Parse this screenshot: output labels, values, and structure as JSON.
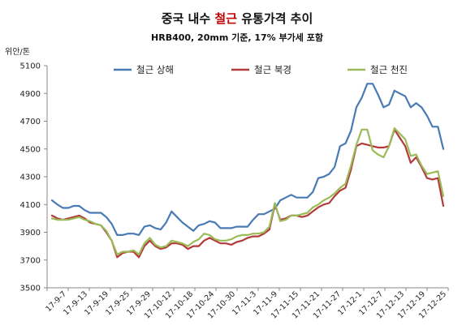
{
  "chart_data": {
    "type": "line",
    "title": {
      "prefix": "중국 내수 ",
      "highlight": "철근",
      "suffix": " 유통가격 추이"
    },
    "subtitle": "HRB400, 20mm 기준, 17% 부가세 포함",
    "ylabel": "위안/톤",
    "xlabel": "",
    "ylim": [
      3500,
      5100
    ],
    "yticks": [
      3500,
      3700,
      3900,
      4100,
      4300,
      4500,
      4700,
      4900,
      5100
    ],
    "grid": false,
    "legend_position": "top",
    "x_tick_labels": [
      "17-9-7",
      "17-9-13",
      "17-9-19",
      "17-9-25",
      "17-9-29",
      "17-10-12",
      "17-10-18",
      "17-10-24",
      "17-10-30",
      "17-11-3",
      "17-11-9",
      "17-11-15",
      "17-11-21",
      "17-11-27",
      "17-12-1",
      "17-12-7",
      "17-12-13",
      "17-12-19",
      "17-12-25"
    ],
    "series": [
      {
        "name": "철근 상해",
        "color": "#4a7ab5",
        "values": [
          4130,
          4100,
          4075,
          4075,
          4090,
          4090,
          4060,
          4040,
          4040,
          4040,
          4010,
          3960,
          3880,
          3880,
          3890,
          3890,
          3880,
          3940,
          3950,
          3930,
          3920,
          3970,
          4050,
          4010,
          3970,
          3940,
          3910,
          3950,
          3960,
          3980,
          3970,
          3930,
          3930,
          3930,
          3940,
          3940,
          3940,
          3990,
          4030,
          4030,
          4050,
          4070,
          4130,
          4150,
          4170,
          4150,
          4150,
          4150,
          4190,
          4290,
          4300,
          4320,
          4370,
          4520,
          4540,
          4630,
          4800,
          4870,
          4970,
          4970,
          4890,
          4800,
          4820,
          4920,
          4900,
          4880,
          4800,
          4830,
          4800,
          4740,
          4660,
          4660,
          4500
        ]
      },
      {
        "name": "철근 북경",
        "color": "#b33a3a",
        "values": [
          4020,
          4000,
          3990,
          4000,
          4010,
          4020,
          4000,
          3970,
          3960,
          3950,
          3900,
          3840,
          3720,
          3750,
          3760,
          3760,
          3720,
          3800,
          3840,
          3800,
          3780,
          3790,
          3820,
          3820,
          3810,
          3780,
          3800,
          3800,
          3840,
          3860,
          3840,
          3820,
          3820,
          3810,
          3830,
          3840,
          3860,
          3870,
          3870,
          3890,
          3920,
          4100,
          3990,
          4000,
          4020,
          4020,
          4010,
          4020,
          4050,
          4080,
          4100,
          4110,
          4160,
          4200,
          4220,
          4350,
          4520,
          4540,
          4530,
          4520,
          4510,
          4510,
          4520,
          4640,
          4580,
          4520,
          4400,
          4440,
          4370,
          4290,
          4280,
          4290,
          4090
        ]
      },
      {
        "name": "철근 천진",
        "color": "#9bbb59",
        "values": [
          4000,
          3990,
          3990,
          3990,
          4000,
          4010,
          3990,
          3980,
          3960,
          3950,
          3910,
          3840,
          3740,
          3760,
          3760,
          3770,
          3740,
          3820,
          3860,
          3810,
          3790,
          3800,
          3840,
          3830,
          3820,
          3800,
          3830,
          3850,
          3890,
          3880,
          3850,
          3840,
          3840,
          3850,
          3870,
          3880,
          3880,
          3890,
          3890,
          3900,
          3940,
          4110,
          3980,
          3990,
          4020,
          4020,
          4030,
          4040,
          4080,
          4100,
          4130,
          4150,
          4180,
          4220,
          4250,
          4380,
          4530,
          4640,
          4640,
          4490,
          4460,
          4440,
          4520,
          4650,
          4610,
          4570,
          4450,
          4460,
          4380,
          4320,
          4330,
          4340,
          4160
        ]
      }
    ]
  }
}
